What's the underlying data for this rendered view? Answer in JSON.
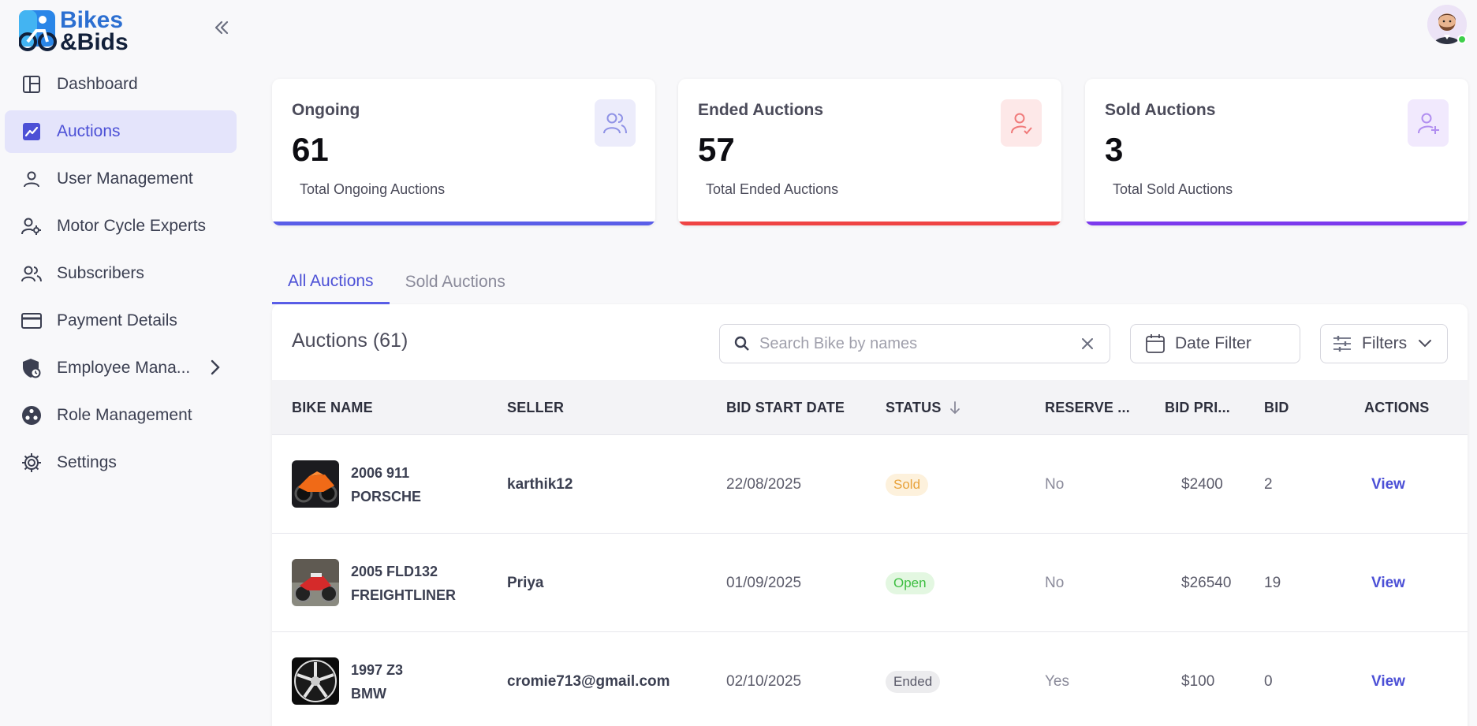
{
  "app": {
    "logo_line1": "Bikes",
    "logo_line2": "&Bids",
    "accent": "#4c50d6"
  },
  "sidebar": {
    "items": [
      {
        "label": "Dashboard",
        "icon": "dashboard-icon"
      },
      {
        "label": "Auctions",
        "icon": "trend-chart-icon",
        "active": true
      },
      {
        "label": "User Management",
        "icon": "user-icon"
      },
      {
        "label": "Motor Cycle Experts",
        "icon": "user-gear-icon"
      },
      {
        "label": "Subscribers",
        "icon": "users-icon"
      },
      {
        "label": "Payment Details",
        "icon": "credit-card-icon"
      },
      {
        "label": "Employee Mana...",
        "icon": "shield-icon",
        "has_submenu": true
      },
      {
        "label": "Role Management",
        "icon": "roles-icon"
      },
      {
        "label": "Settings",
        "icon": "gear-icon"
      }
    ]
  },
  "stats": [
    {
      "label": "Ongoing",
      "value": "61",
      "sub": "Total Ongoing Auctions",
      "icon": "users-icon",
      "bar_color": "#5a5ee8",
      "icon_bg": "#ececfb",
      "icon_color": "#8f92e6"
    },
    {
      "label": "Ended Auctions",
      "value": "57",
      "sub": "Total Ended Auctions",
      "icon": "user-check-icon",
      "bar_color": "#ef4444",
      "icon_bg": "#fde8e8",
      "icon_color": "#f07a7a"
    },
    {
      "label": "Sold Auctions",
      "value": "3",
      "sub": "Total Sold Auctions",
      "icon": "user-plus-icon",
      "bar_color": "#7c3aed",
      "icon_bg": "#f1e9fd",
      "icon_color": "#b18ef0"
    }
  ],
  "tabs": [
    {
      "label": "All Auctions",
      "active": true
    },
    {
      "label": "Sold Auctions",
      "active": false
    }
  ],
  "table": {
    "title": "Auctions (61)",
    "search_placeholder": "Search Bike by names",
    "date_filter_label": "Date Filter",
    "filters_label": "Filters",
    "columns": [
      "BIKE NAME",
      "SELLER",
      "BID START DATE",
      "STATUS",
      "RESERVE ...",
      "BID PRI...",
      "BID",
      "ACTIONS"
    ],
    "rows": [
      {
        "name1": "2006 911",
        "name2": "PORSCHE",
        "seller": "karthik12",
        "date": "22/08/2025",
        "status": "Sold",
        "reserve": "No",
        "price": "$2400",
        "bid": "2",
        "action": "View"
      },
      {
        "name1": "2005 FLD132",
        "name2": "FREIGHTLINER",
        "seller": "Priya",
        "date": "01/09/2025",
        "status": "Open",
        "reserve": "No",
        "price": "$26540",
        "bid": "19",
        "action": "View"
      },
      {
        "name1": "1997 Z3",
        "name2": "BMW",
        "seller": "cromie713@gmail.com",
        "date": "02/10/2025",
        "status": "Ended",
        "reserve": "Yes",
        "price": "$100",
        "bid": "0",
        "action": "View"
      }
    ],
    "status_colors": {
      "Sold": {
        "bg": "#fdf1dc",
        "fg": "#e8a23a"
      },
      "Open": {
        "bg": "#e3f7e1",
        "fg": "#3fbf43"
      },
      "Ended": {
        "bg": "#ececee",
        "fg": "#5b5b6a"
      }
    }
  }
}
